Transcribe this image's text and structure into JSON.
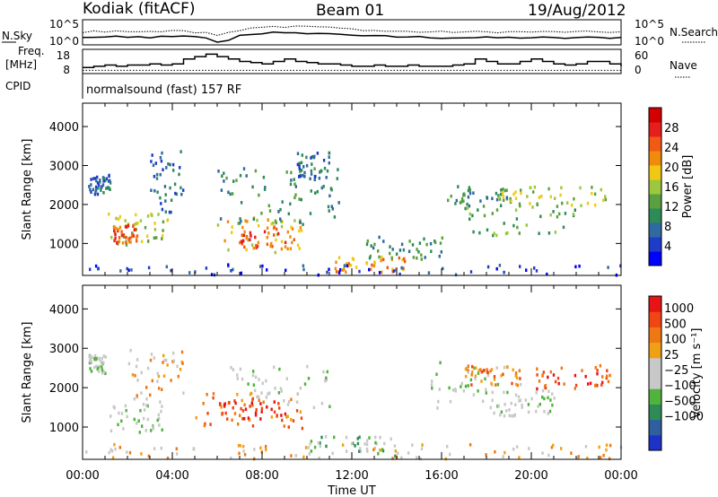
{
  "header": {
    "station": "Kodiak (fitACF)",
    "beam": "Beam 01",
    "date": "19/Aug/2012"
  },
  "chart_data": [
    {
      "type": "line",
      "panel": "noise",
      "left_label": "N.Sky",
      "right_label": "N.Search",
      "left_ticks": [
        "10^5",
        "10^0"
      ],
      "right_ticks": [
        "10^5",
        "10^0"
      ],
      "series": [
        {
          "name": "N.Sky",
          "style": "solid",
          "x": [
            0,
            0.5,
            1,
            1.5,
            2,
            2.5,
            3,
            3.5,
            4,
            4.5,
            5,
            5.5,
            6,
            6.5,
            7,
            7.5,
            8,
            8.5,
            9,
            9.5,
            10,
            10.5,
            11,
            11.5,
            12,
            12.5,
            13,
            13.5,
            14,
            14.5,
            15,
            15.5,
            16,
            16.5,
            17,
            17.5,
            18,
            18.5,
            19,
            19.5,
            20,
            20.5,
            21,
            21.5,
            22,
            22.5,
            23,
            23.5,
            24
          ],
          "y": [
            0.5,
            0.6,
            0.55,
            0.6,
            0.5,
            0.6,
            0.55,
            0.6,
            0.6,
            0.65,
            0.6,
            0.5,
            -0.2,
            0.2,
            0.8,
            1.0,
            1.1,
            1.2,
            1.1,
            1.1,
            1.15,
            1.1,
            1.0,
            1.0,
            0.9,
            0.8,
            0.7,
            0.7,
            0.6,
            0.6,
            0.6,
            0.55,
            0.5,
            0.5,
            0.5,
            0.5,
            0.5,
            0.5,
            0.5,
            0.5,
            0.5,
            0.5,
            0.45,
            0.45,
            0.5,
            0.5,
            0.5,
            0.5,
            0.5
          ]
        },
        {
          "name": "N.Search",
          "style": "dotted",
          "x": [
            0,
            0.5,
            1,
            1.5,
            2,
            2.5,
            3,
            3.5,
            4,
            4.5,
            5,
            5.5,
            6,
            6.5,
            7,
            7.5,
            8,
            8.5,
            9,
            9.5,
            10,
            10.5,
            11,
            11.5,
            12,
            12.5,
            13,
            13.5,
            14,
            14.5,
            15,
            15.5,
            16,
            16.5,
            17,
            17.5,
            18,
            18.5,
            19,
            19.5,
            20,
            20.5,
            21,
            21.5,
            22,
            22.5,
            23,
            23.5,
            24
          ],
          "y": [
            1.3,
            1.4,
            1.3,
            1.4,
            1.4,
            1.35,
            1.4,
            1.35,
            1.4,
            1.5,
            1.3,
            1.3,
            0.9,
            1.2,
            1.6,
            1.9,
            2.0,
            2.1,
            2.0,
            2.05,
            2.1,
            2.0,
            1.9,
            1.8,
            1.7,
            1.6,
            1.5,
            1.4,
            1.4,
            1.35,
            1.3,
            1.3,
            1.3,
            1.3,
            1.3,
            1.3,
            1.3,
            1.3,
            1.3,
            1.3,
            1.3,
            1.3,
            1.3,
            1.3,
            1.3,
            1.3,
            1.3,
            1.3,
            1.3
          ]
        }
      ]
    },
    {
      "type": "line",
      "panel": "frequency",
      "left_label": "Freq. [MHz]",
      "right_label": "Nave",
      "left_ticks": [
        "18",
        "8"
      ],
      "right_ticks": [
        "60",
        "0"
      ],
      "series": [
        {
          "name": "Freq. [MHz]",
          "style": "solid",
          "x": [
            0,
            0.5,
            1,
            1.5,
            2,
            2.5,
            3,
            3.5,
            4,
            4.5,
            5,
            5.5,
            6,
            6.5,
            7,
            7.5,
            8,
            8.5,
            9,
            9.5,
            10,
            10.5,
            11,
            11.5,
            12,
            12.5,
            13,
            13.5,
            14,
            14.5,
            15,
            15.5,
            16,
            16.5,
            17,
            17.5,
            18,
            18.5,
            19,
            19.5,
            20,
            20.5,
            21,
            21.5,
            22,
            22.5,
            23,
            23.5,
            24
          ],
          "y": [
            10.5,
            11,
            11.5,
            11,
            11.5,
            11.5,
            12,
            11.5,
            12,
            14,
            15,
            16,
            15,
            14,
            13,
            12.5,
            12,
            13,
            14,
            13,
            12.5,
            12,
            12,
            11.5,
            11,
            11,
            11.5,
            11,
            11,
            11.5,
            11,
            11,
            11,
            11.5,
            12,
            14,
            13,
            12,
            12,
            13,
            14,
            13,
            12,
            11.5,
            12,
            13,
            13,
            12,
            11
          ]
        },
        {
          "name": "Nave",
          "style": "dotted",
          "x": [
            0,
            4,
            8,
            12,
            16,
            20,
            24
          ],
          "y": [
            8,
            8,
            8,
            8,
            8,
            8,
            8
          ]
        }
      ]
    },
    {
      "type": "line",
      "panel": "cpid",
      "left_label": "CPID",
      "annotation": "normalsound (fast) 157 RF"
    },
    {
      "type": "heatmap",
      "panel": "power",
      "ylabel": "Slant Range [km]",
      "yticks": [
        1000,
        2000,
        3000,
        4000
      ],
      "ylim": [
        180,
        4600
      ],
      "xlim": [
        0,
        24
      ],
      "colorbar_label": "Power [dB]",
      "colorbar_ticks": [
        4,
        8,
        12,
        16,
        20,
        24,
        28
      ],
      "colorbar_colors": [
        "#0000ff",
        "#1e3cc8",
        "#2f6aa0",
        "#2e8b57",
        "#5aa040",
        "#9bc83c",
        "#f0c814",
        "#f08c0a",
        "#f05a14",
        "#e61e1e",
        "#d20000"
      ],
      "regions": [
        {
          "x": [
            0.2,
            1.2
          ],
          "y": [
            2300,
            2800
          ],
          "level": 2
        },
        {
          "x": [
            1.0,
            3.8
          ],
          "y": [
            1000,
            1800
          ],
          "level": 5
        },
        {
          "x": [
            1.3,
            2.4
          ],
          "y": [
            1050,
            1500
          ],
          "level": 8
        },
        {
          "x": [
            3.0,
            4.5
          ],
          "y": [
            1800,
            3400
          ],
          "level": 2
        },
        {
          "x": [
            5.4,
            9.8
          ],
          "y": [
            800,
            1700
          ],
          "level": 6
        },
        {
          "x": [
            7.0,
            9.5
          ],
          "y": [
            900,
            1500
          ],
          "level": 8
        },
        {
          "x": [
            6.0,
            11.5
          ],
          "y": [
            1500,
            3000
          ],
          "level": 3
        },
        {
          "x": [
            9.5,
            11.0
          ],
          "y": [
            2700,
            3400
          ],
          "level": 2
        },
        {
          "x": [
            11.2,
            14.5
          ],
          "y": [
            300,
            700
          ],
          "level": 7
        },
        {
          "x": [
            12.5,
            16.0
          ],
          "y": [
            600,
            1200
          ],
          "level": 3
        },
        {
          "x": [
            16.0,
            19.5
          ],
          "y": [
            2000,
            2500
          ],
          "level": 3
        },
        {
          "x": [
            17.0,
            22.0
          ],
          "y": [
            1200,
            2000
          ],
          "level": 4
        },
        {
          "x": [
            18.5,
            23.5
          ],
          "y": [
            2000,
            2500
          ],
          "level": 5
        },
        {
          "x": [
            0.0,
            24.0
          ],
          "y": [
            200,
            500
          ],
          "level": 1
        }
      ]
    },
    {
      "type": "heatmap",
      "panel": "velocity",
      "ylabel": "Slant Range [km]",
      "xlabel": "Time UT",
      "xticks": [
        "00:00",
        "04:00",
        "08:00",
        "12:00",
        "16:00",
        "20:00",
        "00:00"
      ],
      "yticks": [
        1000,
        2000,
        3000,
        4000
      ],
      "ylim": [
        180,
        4600
      ],
      "xlim": [
        0,
        24
      ],
      "colorbar_label": "Velocity [m s⁻¹]",
      "colorbar_ticks": [
        "1000",
        "500",
        "100",
        "25",
        "−25",
        "−100",
        "−500",
        "−1000"
      ],
      "colorbar_colors": [
        "#1e32c8",
        "#2f5fa0",
        "#2e8b57",
        "#50b43c",
        "#c8c8c8",
        "#c8c8c8",
        "#f0a014",
        "#f07814",
        "#f04614",
        "#e61414"
      ],
      "regions": [
        {
          "x": [
            0.2,
            1.0
          ],
          "y": [
            2400,
            2900
          ],
          "level": 4
        },
        {
          "x": [
            1.2,
            3.5
          ],
          "y": [
            900,
            1800
          ],
          "level": 4
        },
        {
          "x": [
            2.0,
            4.5
          ],
          "y": [
            1800,
            3000
          ],
          "level": 6
        },
        {
          "x": [
            5.0,
            9.8
          ],
          "y": [
            1000,
            1900
          ],
          "level": 7
        },
        {
          "x": [
            6.0,
            9.0
          ],
          "y": [
            1200,
            1700
          ],
          "level": 8
        },
        {
          "x": [
            6.5,
            11.0
          ],
          "y": [
            1500,
            2600
          ],
          "level": 4
        },
        {
          "x": [
            10.0,
            14.0
          ],
          "y": [
            300,
            800
          ],
          "level": 3
        },
        {
          "x": [
            15.5,
            19.5
          ],
          "y": [
            1500,
            2700
          ],
          "level": 4
        },
        {
          "x": [
            17.0,
            19.5
          ],
          "y": [
            2100,
            2600
          ],
          "level": 7
        },
        {
          "x": [
            20.0,
            23.5
          ],
          "y": [
            2000,
            2600
          ],
          "level": 8
        },
        {
          "x": [
            18.0,
            21.0
          ],
          "y": [
            1300,
            2000
          ],
          "level": 4
        },
        {
          "x": [
            0.0,
            24.0
          ],
          "y": [
            200,
            600
          ],
          "level": 6
        }
      ]
    }
  ]
}
